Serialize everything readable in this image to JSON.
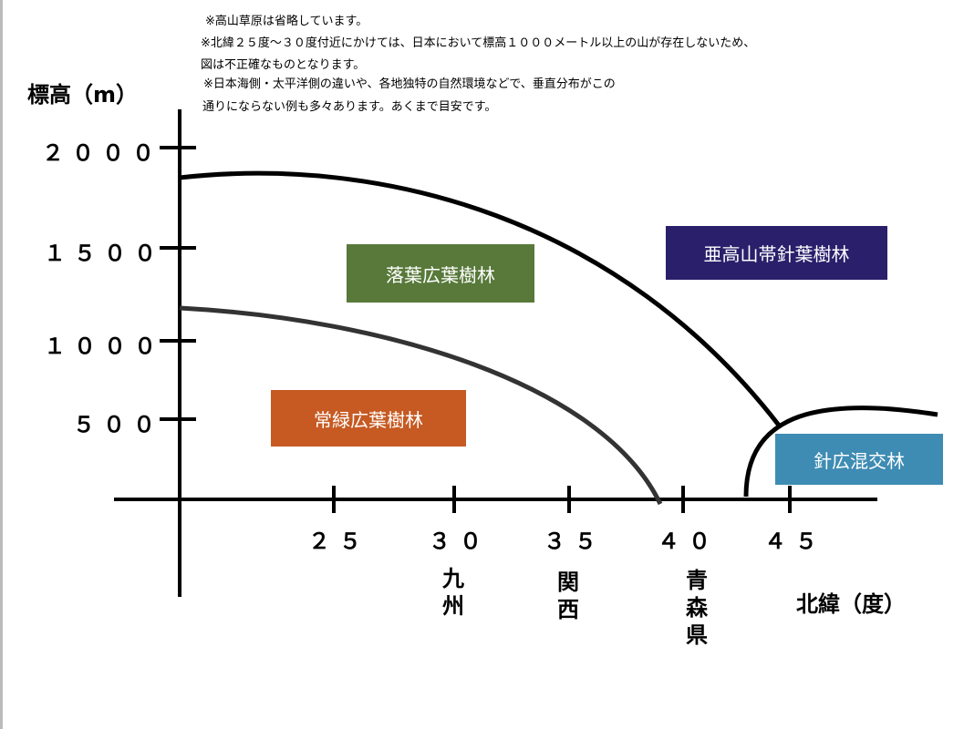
{
  "notes": [
    "※高山草原は省略しています。",
    "※北緯２５度～３０度付近にかけては、日本において標高１０００メートル以上の山が存在しないため、",
    "図は不正確なものとなります。",
    "※日本海側・太平洋側の違いや、各地独特の自然環境などで、垂直分布がこの",
    "通りにならない例も多々あります。あくまで目安です。"
  ],
  "y_axis": {
    "title": "標高（m）",
    "ticks": [
      "２０００",
      "１５００",
      "１０００",
      "５００"
    ]
  },
  "x_axis": {
    "title": "北緯（度）",
    "ticks": [
      "２５",
      "３０",
      "３５",
      "４０",
      "４５"
    ],
    "places": {
      "30": "九州",
      "35": "関西",
      "40": "青森県"
    }
  },
  "zones": [
    {
      "label": "落葉広葉樹林",
      "color": "#58793a"
    },
    {
      "label": "亜高山帯針葉樹林",
      "color": "#2a1f6b"
    },
    {
      "label": "常緑広葉樹林",
      "color": "#c65a22"
    },
    {
      "label": "針広混交林",
      "color": "#3e8cb3"
    }
  ]
}
